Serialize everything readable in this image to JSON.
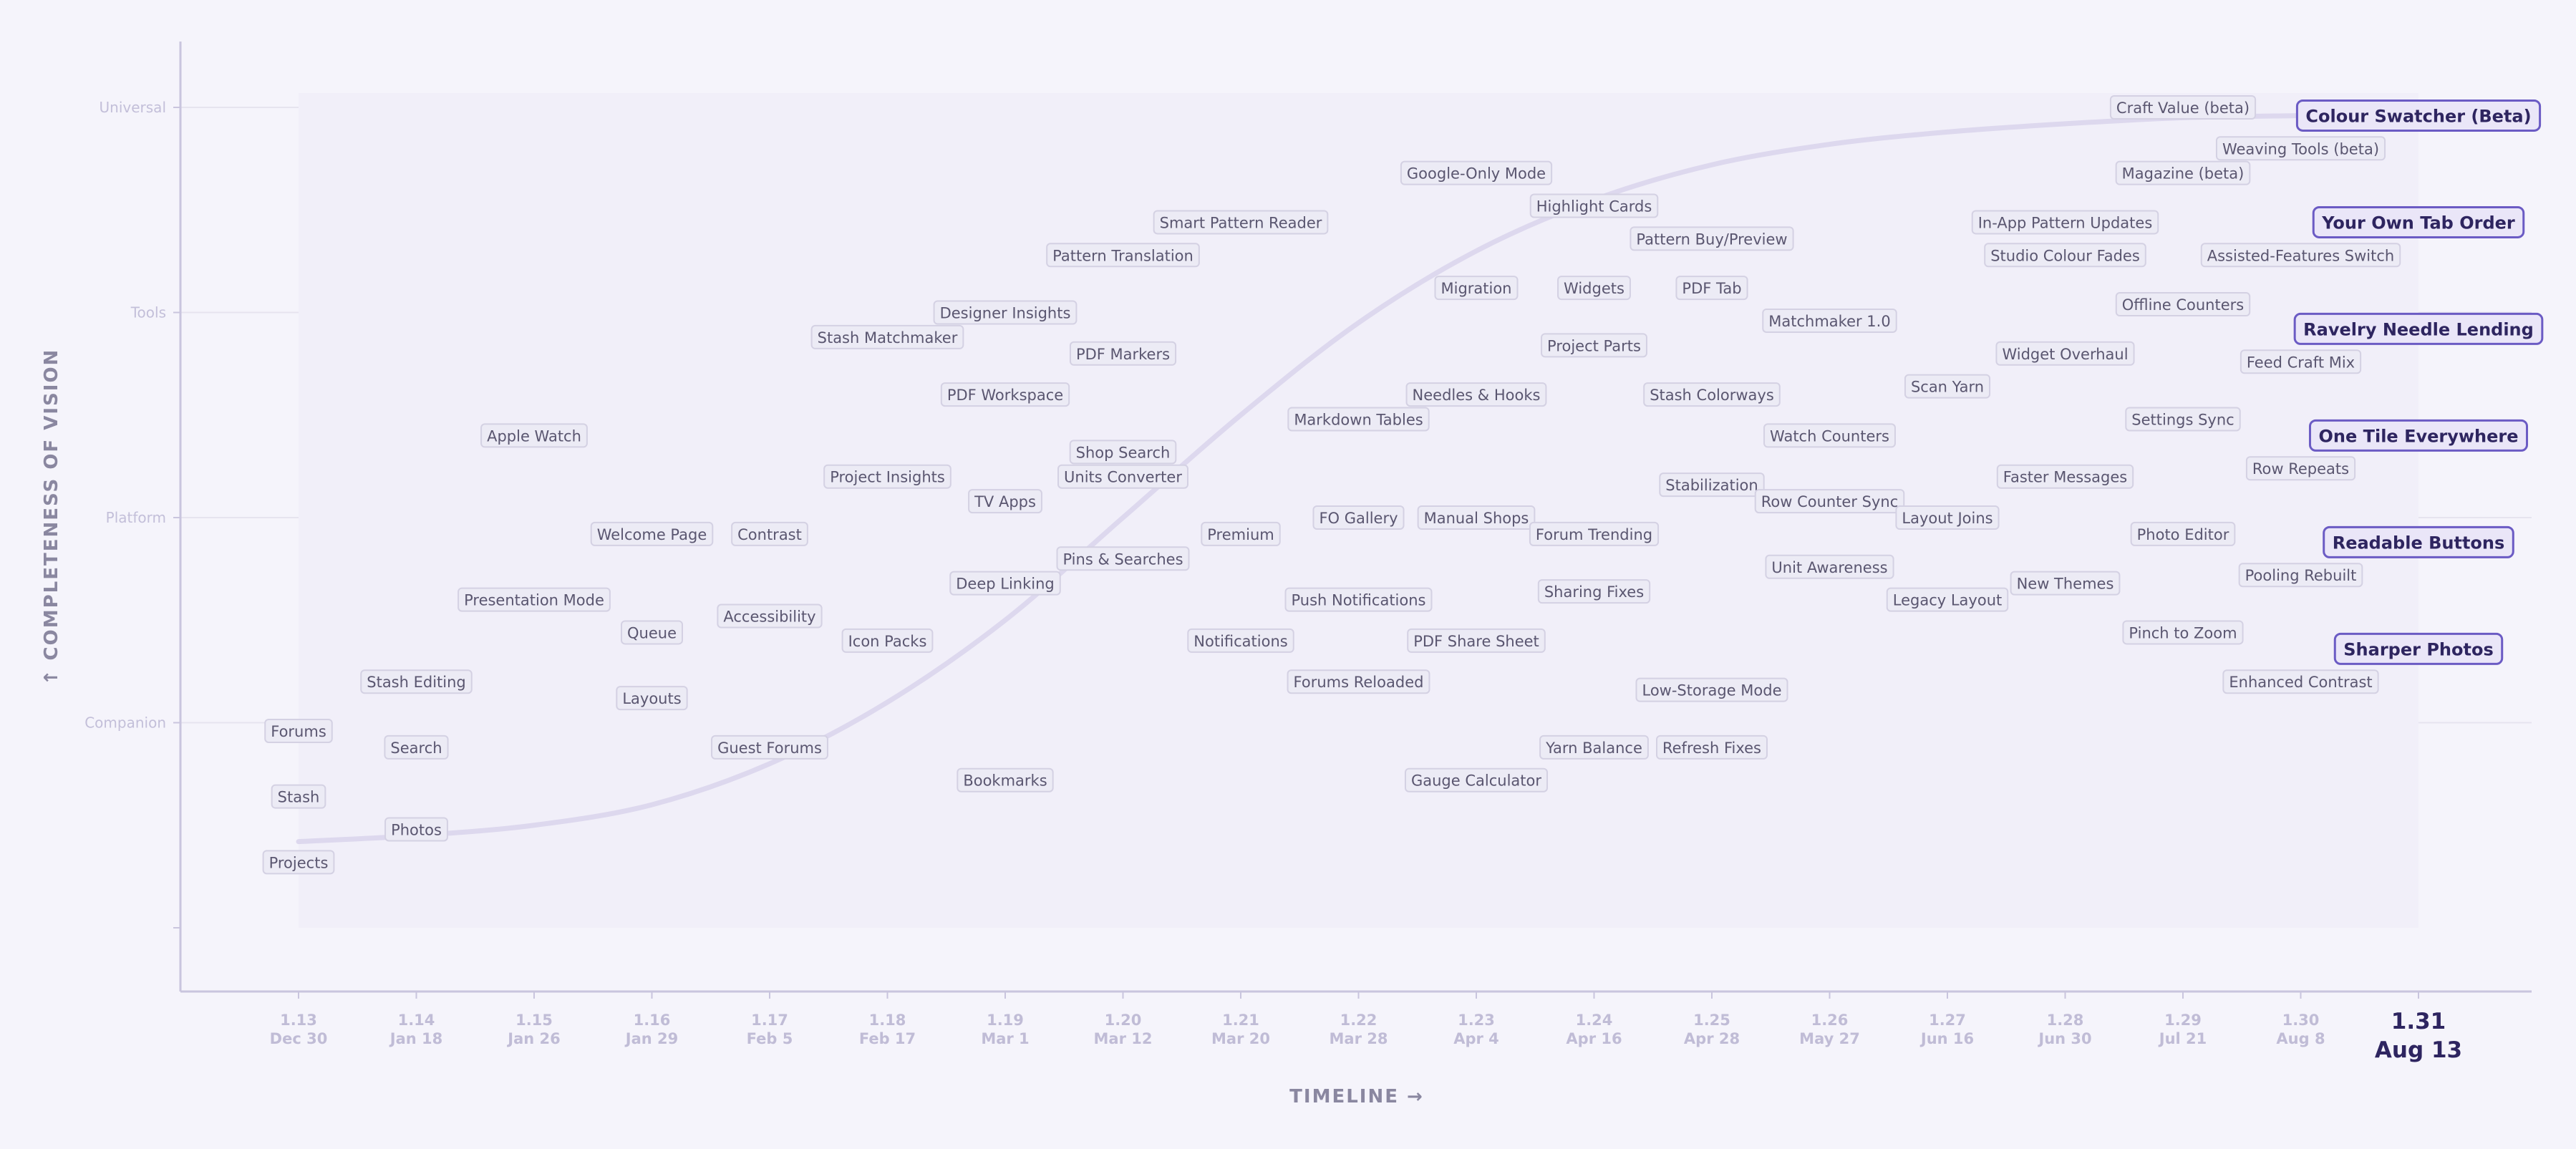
{
  "chart_data": {
    "type": "scatter",
    "xlabel": "TIMELINE  →",
    "ylabel": "↑  COMPLETENESS  OF  VISION",
    "x_ticks": [
      {
        "version": "1.13",
        "date": "Dec 30"
      },
      {
        "version": "1.14",
        "date": "Jan 18"
      },
      {
        "version": "1.15",
        "date": "Jan 26"
      },
      {
        "version": "1.16",
        "date": "Jan 29"
      },
      {
        "version": "1.17",
        "date": "Feb 5"
      },
      {
        "version": "1.18",
        "date": "Feb 17"
      },
      {
        "version": "1.19",
        "date": "Mar 1"
      },
      {
        "version": "1.20",
        "date": "Mar 12"
      },
      {
        "version": "1.21",
        "date": "Mar 20"
      },
      {
        "version": "1.22",
        "date": "Mar 28"
      },
      {
        "version": "1.23",
        "date": "Apr 4"
      },
      {
        "version": "1.24",
        "date": "Apr 16"
      },
      {
        "version": "1.25",
        "date": "Apr 28"
      },
      {
        "version": "1.26",
        "date": "May 27"
      },
      {
        "version": "1.27",
        "date": "Jun 16"
      },
      {
        "version": "1.28",
        "date": "Jun 30"
      },
      {
        "version": "1.29",
        "date": "Jul 21"
      },
      {
        "version": "1.30",
        "date": "Aug 8"
      },
      {
        "version": "1.31",
        "date": "Aug 13",
        "highlight": true
      }
    ],
    "y_levels": [
      {
        "label": "Companion",
        "value": 1
      },
      {
        "label": "Platform",
        "value": 2
      },
      {
        "label": "Tools",
        "value": 3
      },
      {
        "label": "Universal",
        "value": 4
      }
    ],
    "ylim": [
      0,
      4.2
    ],
    "trend": [
      [
        0,
        0.42
      ],
      [
        1,
        0.45
      ],
      [
        2,
        0.5
      ],
      [
        3,
        0.6
      ],
      [
        4,
        0.8
      ],
      [
        5,
        1.1
      ],
      [
        6,
        1.5
      ],
      [
        7,
        2.0
      ],
      [
        8,
        2.5
      ],
      [
        9,
        2.95
      ],
      [
        10,
        3.3
      ],
      [
        11,
        3.55
      ],
      [
        12,
        3.72
      ],
      [
        13,
        3.82
      ],
      [
        14,
        3.88
      ],
      [
        15,
        3.92
      ],
      [
        16,
        3.95
      ],
      [
        17,
        3.96
      ],
      [
        18,
        3.97
      ]
    ],
    "points": [
      {
        "label": "Forums",
        "x": 0,
        "y": 0.96
      },
      {
        "label": "Stash",
        "x": 0,
        "y": 0.64
      },
      {
        "label": "Projects",
        "x": 0,
        "y": 0.32
      },
      {
        "label": "Stash Editing",
        "x": 1,
        "y": 1.2
      },
      {
        "label": "Search",
        "x": 1,
        "y": 0.88
      },
      {
        "label": "Photos",
        "x": 1,
        "y": 0.48
      },
      {
        "label": "Apple Watch",
        "x": 2,
        "y": 2.4
      },
      {
        "label": "Presentation Mode",
        "x": 2,
        "y": 1.6
      },
      {
        "label": "Welcome Page",
        "x": 3,
        "y": 1.92
      },
      {
        "label": "Queue",
        "x": 3,
        "y": 1.44
      },
      {
        "label": "Layouts",
        "x": 3,
        "y": 1.12
      },
      {
        "label": "Contrast",
        "x": 4,
        "y": 1.92
      },
      {
        "label": "Accessibility",
        "x": 4,
        "y": 1.52
      },
      {
        "label": "Guest Forums",
        "x": 4,
        "y": 0.88
      },
      {
        "label": "Stash Matchmaker",
        "x": 5,
        "y": 2.88
      },
      {
        "label": "Project Insights",
        "x": 5,
        "y": 2.2
      },
      {
        "label": "Icon Packs",
        "x": 5,
        "y": 1.4
      },
      {
        "label": "Designer Insights",
        "x": 6,
        "y": 3.0
      },
      {
        "label": "PDF Workspace",
        "x": 6,
        "y": 2.6
      },
      {
        "label": "TV Apps",
        "x": 6,
        "y": 2.08
      },
      {
        "label": "Deep Linking",
        "x": 6,
        "y": 1.68
      },
      {
        "label": "Bookmarks",
        "x": 6,
        "y": 0.72
      },
      {
        "label": "Pattern Translation",
        "x": 7,
        "y": 3.28
      },
      {
        "label": "PDF Markers",
        "x": 7,
        "y": 2.8
      },
      {
        "label": "Shop Search",
        "x": 7,
        "y": 2.32
      },
      {
        "label": "Units Converter",
        "x": 7,
        "y": 2.2
      },
      {
        "label": "Pins & Searches",
        "x": 7,
        "y": 1.8
      },
      {
        "label": "Smart Pattern Reader",
        "x": 8,
        "y": 3.44
      },
      {
        "label": "Premium",
        "x": 8,
        "y": 1.92
      },
      {
        "label": "Notifications",
        "x": 8,
        "y": 1.4
      },
      {
        "label": "Markdown Tables",
        "x": 9,
        "y": 2.48
      },
      {
        "label": "FO Gallery",
        "x": 9,
        "y": 2.0
      },
      {
        "label": "Push Notifications",
        "x": 9,
        "y": 1.6
      },
      {
        "label": "Forums Reloaded",
        "x": 9,
        "y": 1.2
      },
      {
        "label": "Google-Only Mode",
        "x": 10,
        "y": 3.68
      },
      {
        "label": "Migration",
        "x": 10,
        "y": 3.12
      },
      {
        "label": "Needles & Hooks",
        "x": 10,
        "y": 2.6
      },
      {
        "label": "Manual Shops",
        "x": 10,
        "y": 2.0
      },
      {
        "label": "PDF Share Sheet",
        "x": 10,
        "y": 1.4
      },
      {
        "label": "Gauge Calculator",
        "x": 10,
        "y": 0.72
      },
      {
        "label": "Highlight Cards",
        "x": 11,
        "y": 3.52
      },
      {
        "label": "Widgets",
        "x": 11,
        "y": 3.12
      },
      {
        "label": "Project Parts",
        "x": 11,
        "y": 2.84
      },
      {
        "label": "Forum Trending",
        "x": 11,
        "y": 1.92
      },
      {
        "label": "Sharing Fixes",
        "x": 11,
        "y": 1.64
      },
      {
        "label": "Yarn Balance",
        "x": 11,
        "y": 0.88
      },
      {
        "label": "Pattern Buy/Preview",
        "x": 12,
        "y": 3.36
      },
      {
        "label": "PDF Tab",
        "x": 12,
        "y": 3.12
      },
      {
        "label": "Stash Colorways",
        "x": 12,
        "y": 2.6
      },
      {
        "label": "Stabilization",
        "x": 12,
        "y": 2.16
      },
      {
        "label": "Low-Storage Mode",
        "x": 12,
        "y": 1.16
      },
      {
        "label": "Refresh Fixes",
        "x": 12,
        "y": 0.88
      },
      {
        "label": "Matchmaker 1.0",
        "x": 13,
        "y": 2.96
      },
      {
        "label": "Watch Counters",
        "x": 13,
        "y": 2.4
      },
      {
        "label": "Row Counter Sync",
        "x": 13,
        "y": 2.08
      },
      {
        "label": "Unit Awareness",
        "x": 13,
        "y": 1.76
      },
      {
        "label": "Scan Yarn",
        "x": 14,
        "y": 2.64
      },
      {
        "label": "Layout Joins",
        "x": 14,
        "y": 2.0
      },
      {
        "label": "Legacy Layout",
        "x": 14,
        "y": 1.6
      },
      {
        "label": "In-App Pattern Updates",
        "x": 15,
        "y": 3.44
      },
      {
        "label": "Studio Colour Fades",
        "x": 15,
        "y": 3.28
      },
      {
        "label": "Widget Overhaul",
        "x": 15,
        "y": 2.8
      },
      {
        "label": "Faster Messages",
        "x": 15,
        "y": 2.2
      },
      {
        "label": "New Themes",
        "x": 15,
        "y": 1.68
      },
      {
        "label": "Craft Value (beta)",
        "x": 16,
        "y": 4.0
      },
      {
        "label": "Magazine (beta)",
        "x": 16,
        "y": 3.68
      },
      {
        "label": "Offline Counters",
        "x": 16,
        "y": 3.04
      },
      {
        "label": "Settings Sync",
        "x": 16,
        "y": 2.48
      },
      {
        "label": "Photo Editor",
        "x": 16,
        "y": 1.92
      },
      {
        "label": "Pinch to Zoom",
        "x": 16,
        "y": 1.44
      },
      {
        "label": "Weaving Tools (beta)",
        "x": 17,
        "y": 3.8
      },
      {
        "label": "Assisted-Features Switch",
        "x": 17,
        "y": 3.28
      },
      {
        "label": "Feed Craft Mix",
        "x": 17,
        "y": 2.76
      },
      {
        "label": "Row Repeats",
        "x": 17,
        "y": 2.24
      },
      {
        "label": "Pooling Rebuilt",
        "x": 17,
        "y": 1.72
      },
      {
        "label": "Enhanced Contrast",
        "x": 17,
        "y": 1.2
      },
      {
        "label": "Colour Swatcher (Beta)",
        "x": 18,
        "y": 3.96,
        "highlight": true
      },
      {
        "label": "Your Own Tab Order",
        "x": 18,
        "y": 3.44,
        "highlight": true
      },
      {
        "label": "Ravelry Needle Lending",
        "x": 18,
        "y": 2.92,
        "highlight": true
      },
      {
        "label": "One Tile Everywhere",
        "x": 18,
        "y": 2.4,
        "highlight": true
      },
      {
        "label": "Readable Buttons",
        "x": 18,
        "y": 1.88,
        "highlight": true
      },
      {
        "label": "Sharper Photos",
        "x": 18,
        "y": 1.36,
        "highlight": true
      }
    ],
    "grid": true,
    "legend": "none",
    "colors": {
      "accent": "#6b5bc4",
      "highlight_text": "#2e2560",
      "trend": "#ddd8ee",
      "grid": "#e6e4ef",
      "axis": "#c9c5de"
    }
  }
}
